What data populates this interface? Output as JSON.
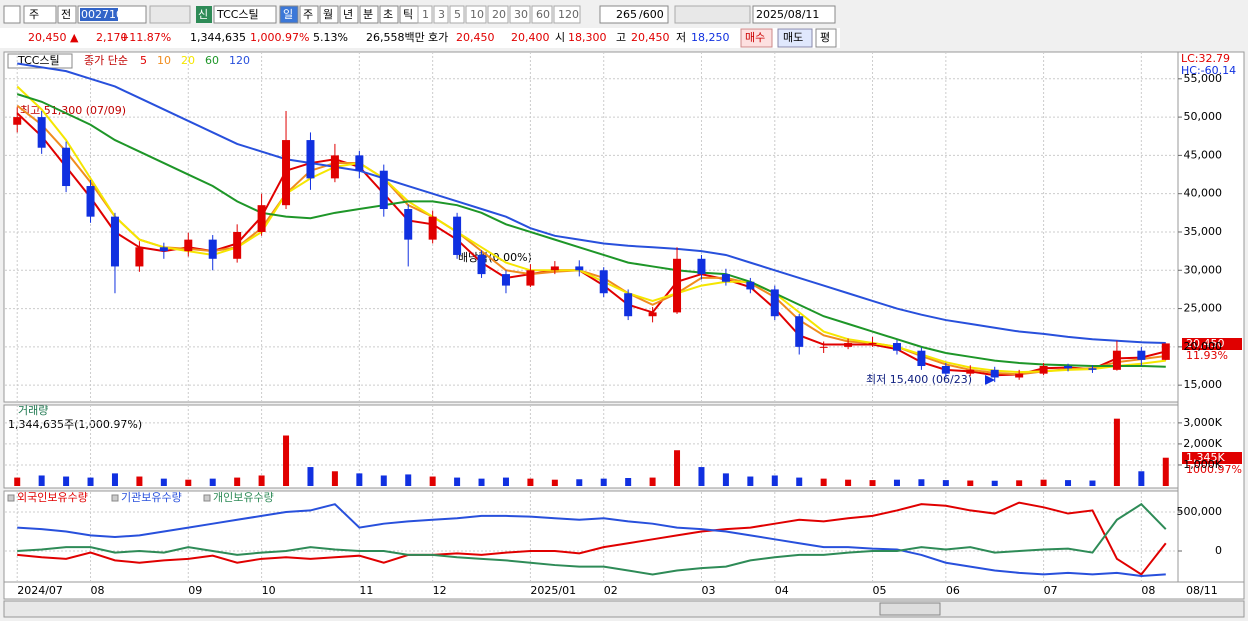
{
  "toolbar": {
    "market": "주",
    "prev": "전",
    "code": "002710",
    "badge": "신",
    "name": "TCC스틸",
    "periods": [
      "일",
      "주",
      "월",
      "년",
      "분",
      "초",
      "틱"
    ],
    "intervals": [
      "1",
      "3",
      "5",
      "10",
      "20",
      "30",
      "60",
      "120"
    ],
    "count": "265",
    "max": "/600",
    "date": "2025/08/11"
  },
  "quote": {
    "price": "20,450 ▲",
    "change": "2,170",
    "change_pct": "+11.87%",
    "volume": "1,344,635",
    "volume_pct": "1,000.97%",
    "turnover": "5.13%",
    "amount": "26,558백만",
    "bid_ask_label": "호가",
    "ask": "20,450",
    "bid": "20,400",
    "open_label": "시",
    "open": "18,300",
    "high_label": "고",
    "high": "20,450",
    "low_label": "저",
    "low": "18,250",
    "buy": "매수",
    "sell": "매도",
    "avg": "평"
  },
  "chart_data": [
    {
      "type": "candlestick",
      "title": "TCC스틸",
      "legend_label": "종가 단순",
      "lc": "LC:32.79",
      "hc": "HC:-60.14",
      "last_label": "20,450",
      "change_label": "11.93%",
      "high_note": "최고 51,300 (07/09)",
      "low_note": "최저 15,400 (06/23)",
      "event_note": "배당락(0.00%)",
      "end_label": "08/11",
      "categories": [
        "2024/07",
        null,
        null,
        "08",
        null,
        null,
        null,
        "09",
        null,
        null,
        "10",
        null,
        null,
        null,
        "11",
        null,
        null,
        "12",
        null,
        null,
        null,
        "2025/01",
        null,
        null,
        "02",
        null,
        null,
        null,
        "03",
        null,
        null,
        "04",
        null,
        null,
        null,
        "05",
        null,
        null,
        "06",
        null,
        null,
        null,
        "07",
        null,
        null,
        null,
        "08",
        null
      ],
      "open": [
        49000,
        50000,
        46000,
        41000,
        37000,
        30500,
        33000,
        32500,
        34000,
        31500,
        35000,
        38500,
        47000,
        42000,
        45000,
        43000,
        38000,
        34000,
        37000,
        32000,
        29500,
        28000,
        30000,
        30500,
        30000,
        27000,
        24000,
        24500,
        31500,
        29500,
        28500,
        27500,
        24000,
        20000,
        20000,
        20500,
        20500,
        19500,
        17500,
        16500,
        17000,
        16000,
        16500,
        17500,
        17200,
        17000,
        19500,
        18300
      ],
      "high": [
        51300,
        50800,
        46800,
        41800,
        37500,
        33800,
        33600,
        34900,
        34600,
        36000,
        40000,
        50800,
        48000,
        46500,
        45600,
        43800,
        38600,
        37800,
        37500,
        32600,
        30000,
        30800,
        31200,
        31300,
        30400,
        27500,
        25200,
        33000,
        32000,
        30200,
        29000,
        28000,
        24300,
        20700,
        21100,
        21300,
        20900,
        19900,
        17900,
        17600,
        17400,
        17000,
        17900,
        17800,
        17600,
        20800,
        20000,
        20450
      ],
      "low": [
        48000,
        45200,
        40200,
        36200,
        27000,
        29800,
        31500,
        31800,
        30000,
        31000,
        34500,
        38000,
        40500,
        41500,
        42000,
        37000,
        30500,
        33500,
        31500,
        29000,
        27000,
        27800,
        29500,
        29200,
        26500,
        23500,
        23200,
        24300,
        28800,
        28000,
        27000,
        23500,
        19000,
        19200,
        19700,
        20000,
        19000,
        17000,
        16000,
        16200,
        15400,
        15700,
        16300,
        16800,
        16600,
        16900,
        17500,
        18250
      ],
      "close": [
        50000,
        46000,
        41000,
        37000,
        30500,
        33000,
        32500,
        34000,
        31500,
        35000,
        38500,
        47000,
        42000,
        45000,
        43000,
        38000,
        34000,
        37000,
        32000,
        29500,
        28000,
        30000,
        30500,
        30000,
        27000,
        24000,
        24500,
        31500,
        29500,
        28500,
        27500,
        24000,
        20000,
        20000,
        20500,
        20500,
        19500,
        17500,
        16500,
        17000,
        16000,
        16500,
        17500,
        17200,
        17000,
        19500,
        18300,
        20450
      ],
      "up_color": "#e00000",
      "down_color": "#1030e0",
      "series": [
        {
          "name": "5",
          "color": "#e00000",
          "values": [
            50500,
            47500,
            43500,
            39500,
            35000,
            33000,
            32500,
            33000,
            32500,
            33500,
            37000,
            43000,
            44000,
            44500,
            43500,
            40000,
            36500,
            36000,
            34000,
            31000,
            29000,
            29500,
            30000,
            30000,
            28000,
            25500,
            24500,
            28500,
            29500,
            28800,
            27800,
            25000,
            21500,
            20300,
            20300,
            20300,
            19700,
            18000,
            17000,
            16800,
            16300,
            16400,
            17200,
            17300,
            17100,
            18500,
            18600,
            19400
          ]
        },
        {
          "name": "10",
          "color": "#f08c1e",
          "values": [
            51500,
            49000,
            45500,
            41500,
            37000,
            34000,
            33000,
            32800,
            32500,
            33000,
            35500,
            40000,
            43000,
            44000,
            44000,
            42000,
            38500,
            37000,
            35000,
            32500,
            30000,
            29500,
            29800,
            30000,
            29000,
            27000,
            25500,
            27000,
            29000,
            29000,
            28300,
            26500,
            23500,
            21500,
            20700,
            20500,
            20000,
            18800,
            17700,
            17000,
            16600,
            16400,
            16800,
            17100,
            17200,
            18000,
            18400,
            18800
          ]
        },
        {
          "name": "20",
          "color": "#f5e600",
          "values": [
            54000,
            51000,
            47000,
            42000,
            37000,
            34000,
            33000,
            32500,
            32000,
            33000,
            35000,
            40000,
            42000,
            43500,
            44000,
            42000,
            39000,
            37000,
            35000,
            33000,
            31000,
            30000,
            30000,
            30000,
            28500,
            27000,
            26000,
            27000,
            28000,
            28500,
            28500,
            27000,
            24500,
            22000,
            21000,
            20500,
            20000,
            19000,
            18000,
            17300,
            16900,
            16700,
            16800,
            17000,
            17100,
            17500,
            17800,
            18200
          ]
        },
        {
          "name": "60",
          "color": "#1e9628",
          "values": [
            53000,
            52000,
            50500,
            49000,
            47000,
            45500,
            44000,
            42500,
            41000,
            39000,
            37500,
            37000,
            36800,
            37500,
            38000,
            38500,
            39000,
            39000,
            38500,
            37500,
            36000,
            35000,
            34000,
            33000,
            32000,
            31000,
            30500,
            30000,
            29700,
            29500,
            28500,
            27000,
            25500,
            24000,
            23000,
            22000,
            21000,
            20000,
            19200,
            18700,
            18200,
            17900,
            17700,
            17600,
            17500,
            17500,
            17500,
            17400
          ]
        },
        {
          "name": "120",
          "color": "#2850dc",
          "values": [
            57000,
            56500,
            56000,
            55000,
            54000,
            52500,
            51000,
            49500,
            48000,
            46500,
            45500,
            44500,
            44000,
            43500,
            43000,
            42000,
            41000,
            40000,
            39000,
            38000,
            37000,
            35500,
            34500,
            34000,
            33500,
            33200,
            33000,
            32800,
            32500,
            32000,
            31000,
            30000,
            29000,
            28000,
            27000,
            26000,
            25000,
            24200,
            23500,
            23000,
            22500,
            22000,
            21700,
            21300,
            21000,
            20800,
            20600,
            20500
          ]
        }
      ],
      "ylim": [
        12800,
        58500
      ],
      "yticks": [
        {
          "value": 15000,
          "label": "15,000"
        },
        {
          "value": 20000,
          "label": "20,000"
        },
        {
          "value": 25000,
          "label": "25,000"
        },
        {
          "value": 30000,
          "label": "30,000"
        },
        {
          "value": 35000,
          "label": "35,000"
        },
        {
          "value": 40000,
          "label": "40,000"
        },
        {
          "value": 45000,
          "label": "45,000"
        },
        {
          "value": 50000,
          "label": "50,000"
        },
        {
          "value": 55000,
          "label": "55,000"
        }
      ],
      "grid": true
    },
    {
      "type": "bar",
      "title": "거래량",
      "subtitle": "1,344,635주(1,000.97%)",
      "last_label": "1,345K",
      "last_pct": "1000.97%",
      "values": [
        400000,
        500000,
        450000,
        400000,
        600000,
        450000,
        350000,
        300000,
        350000,
        400000,
        500000,
        2400000,
        900000,
        700000,
        600000,
        500000,
        550000,
        450000,
        400000,
        350000,
        400000,
        350000,
        300000,
        320000,
        350000,
        380000,
        400000,
        1700000,
        900000,
        600000,
        450000,
        500000,
        400000,
        350000,
        300000,
        280000,
        300000,
        320000,
        280000,
        260000,
        250000,
        270000,
        300000,
        280000,
        260000,
        3200000,
        700000,
        1344635
      ],
      "ylim": [
        0,
        3850000
      ],
      "yticks": [
        {
          "value": 1000000,
          "label": "1,000K"
        },
        {
          "value": 2000000,
          "label": "2,000K"
        },
        {
          "value": 3000000,
          "label": "3,000K"
        }
      ]
    },
    {
      "type": "line",
      "series": [
        {
          "name": "외국인보유수량",
          "color": "#e00000",
          "values": [
            -50000,
            -80000,
            -100000,
            -20000,
            -120000,
            -150000,
            -120000,
            -100000,
            -60000,
            -150000,
            -100000,
            -80000,
            -100000,
            -80000,
            -60000,
            -150000,
            -50000,
            -50000,
            -30000,
            -50000,
            -20000,
            0,
            0,
            -30000,
            50000,
            100000,
            150000,
            200000,
            250000,
            280000,
            300000,
            350000,
            400000,
            380000,
            420000,
            450000,
            520000,
            600000,
            580000,
            520000,
            480000,
            620000,
            560000,
            480000,
            520000,
            -100000,
            -300000,
            100000
          ]
        },
        {
          "name": "기관보유수량",
          "color": "#2850dc",
          "values": [
            300000,
            280000,
            250000,
            200000,
            180000,
            200000,
            250000,
            300000,
            350000,
            400000,
            450000,
            500000,
            520000,
            600000,
            300000,
            350000,
            380000,
            400000,
            420000,
            450000,
            450000,
            440000,
            420000,
            400000,
            420000,
            380000,
            350000,
            300000,
            280000,
            250000,
            200000,
            150000,
            100000,
            50000,
            50000,
            30000,
            20000,
            -50000,
            -150000,
            -200000,
            -250000,
            -280000,
            -300000,
            -280000,
            -300000,
            -280000,
            -320000,
            -300000
          ]
        },
        {
          "name": "개인보유수량",
          "color": "#2e8b57",
          "values": [
            0,
            20000,
            50000,
            50000,
            -20000,
            0,
            -20000,
            50000,
            0,
            -50000,
            -20000,
            0,
            50000,
            20000,
            0,
            0,
            -50000,
            -50000,
            -80000,
            -100000,
            -120000,
            -150000,
            -180000,
            -200000,
            -200000,
            -250000,
            -300000,
            -250000,
            -220000,
            -200000,
            -120000,
            -80000,
            -50000,
            -50000,
            -20000,
            0,
            0,
            50000,
            20000,
            50000,
            -20000,
            0,
            20000,
            30000,
            -20000,
            400000,
            600000,
            280000
          ]
        }
      ],
      "ylim": [
        -397000,
        756000
      ],
      "yticks": [
        0,
        {
          "value": 500000,
          "label": "500,000"
        }
      ]
    }
  ]
}
